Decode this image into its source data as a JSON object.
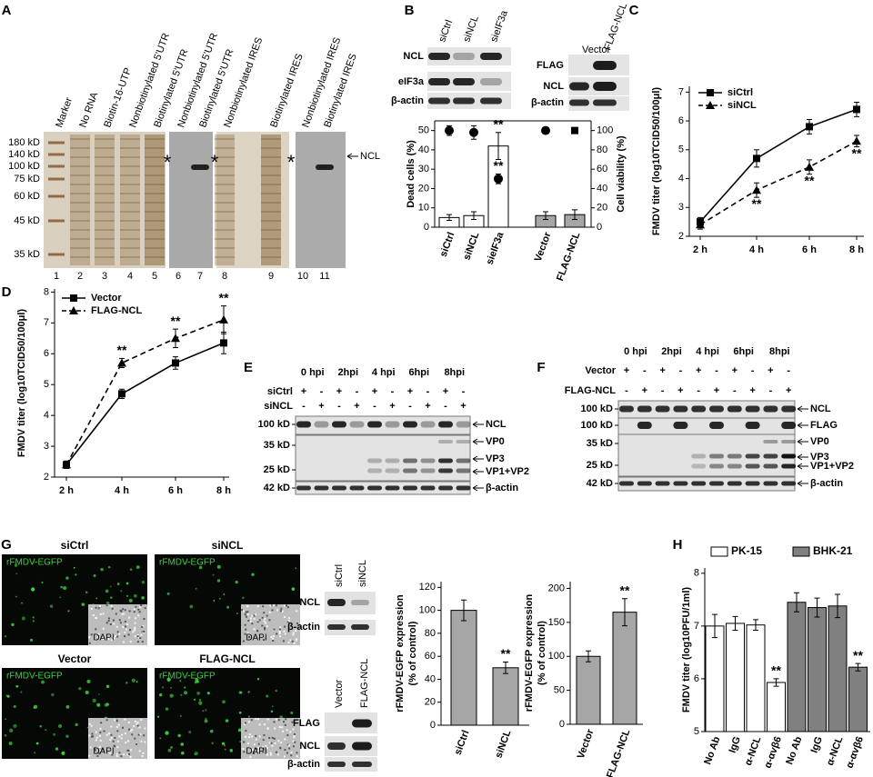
{
  "panel_letters": [
    "A",
    "B",
    "C",
    "D",
    "E",
    "F",
    "G",
    "H"
  ],
  "panel_a": {
    "lanes": [
      "Marker",
      "No RNA",
      "Biotin-16-UTP",
      "Nonbiotinylated 5'UTR",
      "Biotinylated 5'UTR",
      "Nonbiotinylated 5'UTR",
      "Biotinylated 5'UTR",
      "Nonbiotinylated IRES",
      "Biotinylated IRES",
      "Nonbiotinylated IRES",
      "Biotinylated IRES"
    ],
    "lane_numbers": [
      "1",
      "2",
      "3",
      "4",
      "5",
      "6",
      "7",
      "8",
      "9",
      "10",
      "11"
    ],
    "markers": [
      "180 kD",
      "140 kD",
      "100 kD",
      "75 kD",
      "60 kD",
      "45 kD",
      "35 kD"
    ],
    "stars": [
      "*",
      "*",
      "*"
    ],
    "band": "NCL"
  },
  "panel_b_blots": {
    "left_lanes": [
      "siCtrl",
      "siNCL",
      "sieIF3a"
    ],
    "left_rows": [
      "NCL",
      "eIF3a",
      "β-actin"
    ],
    "right_lanes": [
      "Vector",
      "FLAG-NCL"
    ],
    "right_rows": [
      "FLAG",
      "NCL",
      "β-actin"
    ]
  },
  "panel_e": {
    "times": [
      "0 hpi",
      "2hpi",
      "4 hpi",
      "6hpi",
      "8hpi"
    ],
    "rows": [
      {
        "name": "siCtrl",
        "signs": [
          "+",
          "-",
          "+",
          "-",
          "+",
          "-",
          "+",
          "-",
          "+",
          "-"
        ]
      },
      {
        "name": "siNCL",
        "signs": [
          "-",
          "+",
          "-",
          "+",
          "-",
          "+",
          "-",
          "+",
          "-",
          "+"
        ]
      }
    ],
    "markers": [
      "100 kD",
      "35 kD",
      "25 kD",
      "42 kD"
    ],
    "bands": [
      "NCL",
      "VP0",
      "VP3",
      "VP1+VP2",
      "β-actin"
    ]
  },
  "panel_f": {
    "times": [
      "0 hpi",
      "2hpi",
      "4 hpi",
      "6hpi",
      "8hpi"
    ],
    "rows": [
      {
        "name": "Vector",
        "signs": [
          "+",
          "-",
          "+",
          "-",
          "+",
          "-",
          "+",
          "-",
          "+",
          "-"
        ]
      },
      {
        "name": "FLAG-NCL",
        "signs": [
          "-",
          "+",
          "-",
          "+",
          "-",
          "+",
          "-",
          "+",
          "-",
          "+"
        ]
      }
    ],
    "markers": [
      "100 kD",
      "100 kD",
      "35 kD",
      "25 kD",
      "42 kD"
    ],
    "bands": [
      "NCL",
      "FLAG",
      "VP0",
      "VP3",
      "VP1+VP2",
      "β-actin"
    ]
  },
  "panel_g": {
    "titles": [
      "siCtrl",
      "siNCL",
      "Vector",
      "FLAG-NCL"
    ],
    "channel": [
      "rFMDV-EGFP",
      "rFMDV-EGFP",
      "rFMDV-EGFP",
      "rFMDV-EGFP"
    ],
    "inset": [
      "DAPI",
      "DAPI",
      "DAPI",
      "DAPI"
    ],
    "top_lanes": [
      "siCtrl",
      "siNCL"
    ],
    "top_rows": [
      "NCL",
      "β-actin"
    ],
    "bottom_lanes": [
      "Vector",
      "FLAG-NCL"
    ],
    "bottom_rows": [
      "FLAG",
      "NCL",
      "β-actin"
    ]
  },
  "chart_data": [
    {
      "type": "bar",
      "categories": [
        "siCtrl",
        "siNCL",
        "sieIF3a",
        "Vector",
        "FLAG-NCL"
      ],
      "ylabel": "Dead cells (%)",
      "y2label": "Cell viability (%)",
      "ylim": [
        0,
        55
      ],
      "yticks": [
        0,
        10,
        20,
        30,
        40,
        50
      ],
      "y2lim": [
        0,
        110
      ],
      "y2ticks": [
        0,
        20,
        40,
        60,
        80,
        100
      ],
      "series": [
        {
          "type": "bar",
          "values": [
            5,
            6,
            42,
            6,
            6.5
          ],
          "errors": [
            1.5,
            2,
            7,
            2,
            2.5
          ],
          "colors": [
            "#ffffff",
            "#ffffff",
            "#ffffff",
            "#a6a6a6",
            "#a6a6a6"
          ],
          "significance": [
            null,
            null,
            "**",
            null,
            null
          ]
        },
        {
          "type": "scatter",
          "axis": "y2",
          "values": [
            100,
            98,
            50,
            100,
            100
          ],
          "errors": [
            5,
            7,
            5,
            3,
            2
          ],
          "markers": [
            "circle",
            "circle",
            "circle",
            "circle",
            "square"
          ],
          "color": "#000000",
          "significance": [
            null,
            null,
            "**",
            null,
            null
          ]
        }
      ]
    },
    {
      "type": "line",
      "categories": [
        "2 h",
        "4 h",
        "6 h",
        "8 h"
      ],
      "ylabel": "FMDV titer (log10TCID50/100μl)",
      "ylim": [
        2,
        7.2
      ],
      "yticks": [
        2,
        3,
        4,
        5,
        6,
        7
      ],
      "legend": "top-left",
      "series": [
        {
          "name": "siCtrl",
          "color": "#000000",
          "dash": false,
          "marker": "square",
          "values": [
            2.5,
            4.7,
            5.8,
            6.4
          ],
          "errors": [
            0.15,
            0.3,
            0.25,
            0.25
          ]
        },
        {
          "name": "siNCL",
          "color": "#000000",
          "dash": true,
          "marker": "triangle",
          "values": [
            2.4,
            3.6,
            4.4,
            5.3
          ],
          "errors": [
            0.15,
            0.25,
            0.25,
            0.2
          ],
          "significance": [
            null,
            "**",
            "**",
            "**"
          ]
        }
      ]
    },
    {
      "type": "line",
      "categories": [
        "2 h",
        "4 h",
        "6 h",
        "8 h"
      ],
      "ylabel": "FMDV titer (log10TCID50/100μl)",
      "ylim": [
        2,
        8.1
      ],
      "yticks": [
        2,
        3,
        4,
        5,
        6,
        7,
        8
      ],
      "legend": "top-left",
      "series": [
        {
          "name": "Vector",
          "color": "#000000",
          "dash": false,
          "marker": "square",
          "values": [
            2.4,
            4.7,
            5.7,
            6.35
          ],
          "errors": [
            0.12,
            0.15,
            0.2,
            0.35
          ]
        },
        {
          "name": "FLAG-NCL",
          "color": "#000000",
          "dash": true,
          "marker": "triangle",
          "values": [
            2.4,
            5.7,
            6.5,
            7.1
          ],
          "errors": [
            0.12,
            0.15,
            0.3,
            0.45
          ],
          "significance": [
            null,
            "**",
            "**",
            "**"
          ]
        }
      ]
    },
    {
      "type": "bar",
      "categories": [
        "siCtrl",
        "siNCL"
      ],
      "ylabel": [
        "rFMDV-EGFP expression",
        "(% of control)"
      ],
      "ylim": [
        0,
        125
      ],
      "yticks": [
        0,
        20,
        40,
        60,
        80,
        100,
        120
      ],
      "series": [
        {
          "color": "#a6a6a6",
          "values": [
            100,
            50
          ],
          "errors": [
            9,
            5
          ],
          "significance": [
            null,
            "**"
          ]
        }
      ]
    },
    {
      "type": "bar",
      "categories": [
        "Vector",
        "FLAG-NCL"
      ],
      "ylabel": [
        "rFMDV-EGFP expression",
        "(% of control)"
      ],
      "ylim": [
        0,
        210
      ],
      "yticks": [
        0,
        50,
        100,
        150,
        200
      ],
      "series": [
        {
          "color": "#a6a6a6",
          "values": [
            100,
            165
          ],
          "errors": [
            8,
            20
          ],
          "significance": [
            null,
            "**"
          ]
        }
      ]
    },
    {
      "type": "bar",
      "categories": [
        "No Ab",
        "IgG",
        "α-NCL",
        "α-αvβ6",
        "No Ab",
        "IgG",
        "α-NCL",
        "α-αvβ6"
      ],
      "ylabel": "FMDV titer (log10PFU/1ml)",
      "ylim": [
        5,
        8.1
      ],
      "yticks": [
        5,
        6,
        7,
        8
      ],
      "legend": [
        {
          "name": "PK-15",
          "color": "#ffffff"
        },
        {
          "name": "BHK-21",
          "color": "#808080"
        }
      ],
      "series": [
        {
          "values": [
            7.0,
            7.05,
            7.02,
            5.93,
            7.45,
            7.35,
            7.38,
            6.22
          ],
          "errors": [
            0.22,
            0.13,
            0.1,
            0.07,
            0.18,
            0.18,
            0.22,
            0.07
          ],
          "colors": [
            "#ffffff",
            "#ffffff",
            "#ffffff",
            "#ffffff",
            "#808080",
            "#808080",
            "#808080",
            "#808080"
          ],
          "significance": [
            null,
            null,
            null,
            "**",
            null,
            null,
            null,
            "**"
          ]
        }
      ]
    }
  ]
}
